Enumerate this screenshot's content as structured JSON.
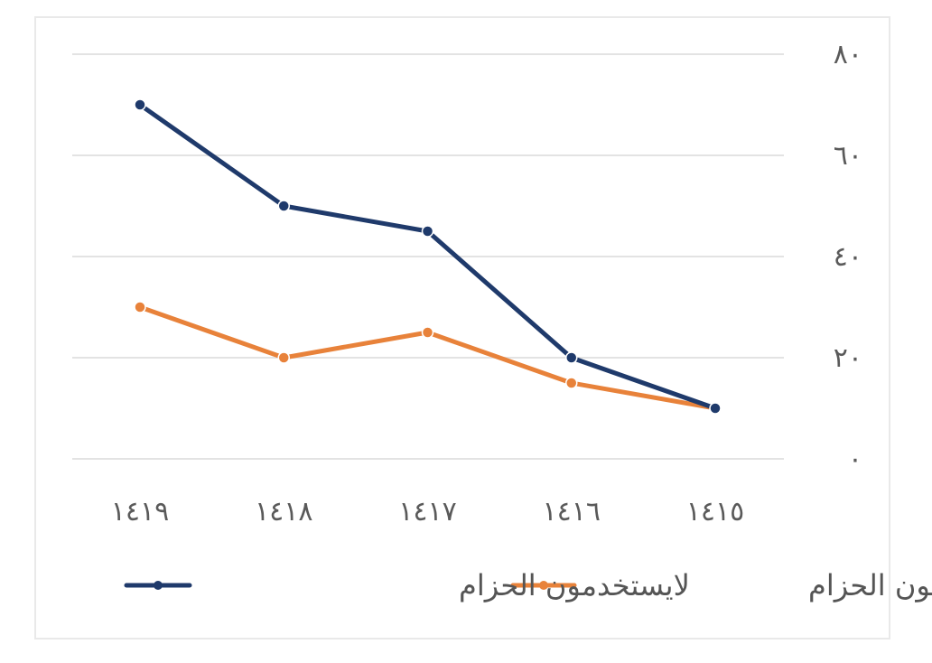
{
  "chart_data": {
    "type": "line",
    "categories": [
      "١٤١٩",
      "١٤١٨",
      "١٤١٧",
      "١٤١٦",
      "١٤١٥"
    ],
    "y_ticks": [
      "٠",
      "٢٠",
      "٤٠",
      "٦٠",
      "٨٠"
    ],
    "ylim": [
      0,
      80
    ],
    "grid": true,
    "legend_position": "bottom",
    "series": [
      {
        "name": "لايستخدمون الحزام",
        "color": "#1f3a6b",
        "values": [
          70,
          50,
          45,
          20,
          10
        ]
      },
      {
        "name": "يستخدمون الحزام",
        "color": "#e8823a",
        "values": [
          30,
          20,
          25,
          15,
          10
        ]
      }
    ]
  }
}
